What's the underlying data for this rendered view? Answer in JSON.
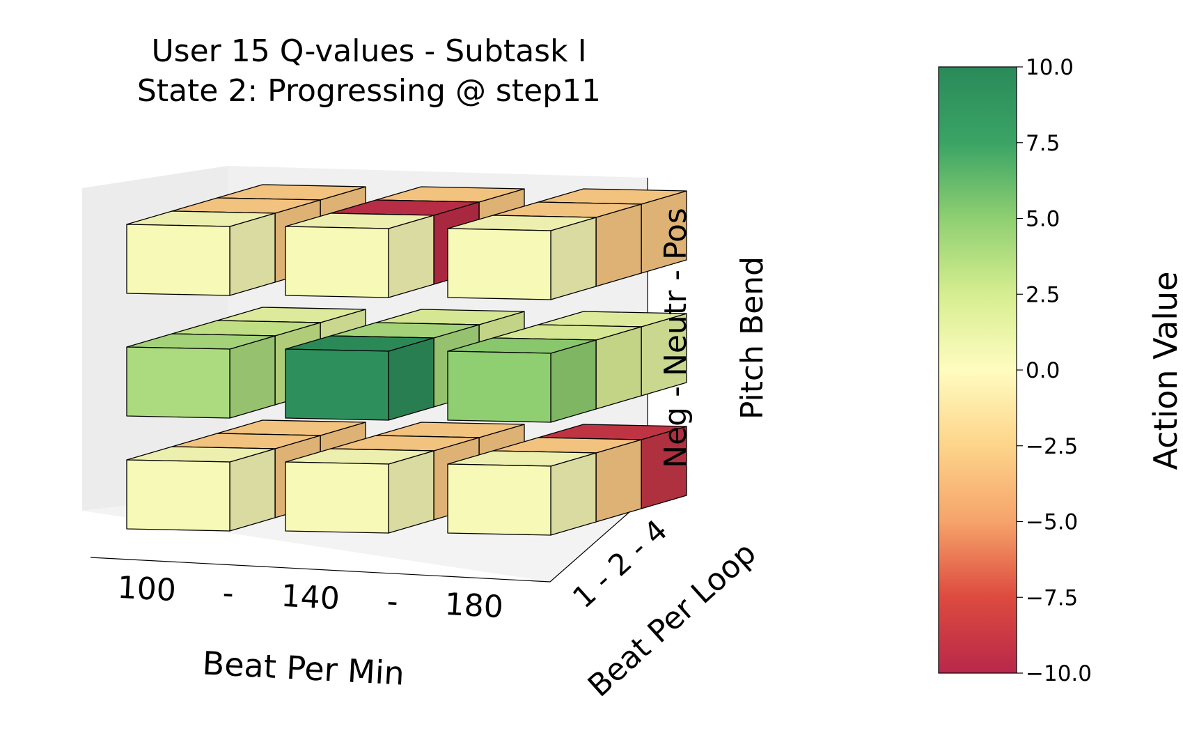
{
  "chart_data": {
    "type": "bar3d",
    "title_line1": "User 15 Q-values  -  Subtask I",
    "title_line2": "State 2: Progressing @ step11",
    "xlabel": "Beat Per Min",
    "ylabel": "Beat Per Loop",
    "zlabel": "Pitch Bend",
    "x_ticks": [
      "100",
      "-",
      "140",
      "-",
      "180"
    ],
    "y_tick_text": "1 - 2 - 4",
    "z_tick_text": "Neg - Neutr - Pos",
    "x_categories": [
      "100",
      "140",
      "180"
    ],
    "y_categories": [
      "1",
      "2",
      "4"
    ],
    "z_categories": [
      "Neg",
      "Neutr",
      "Pos"
    ],
    "values": {
      "Pos": [
        [
          0.5,
          -3,
          -3
        ],
        [
          0.5,
          -9.5,
          -3
        ],
        [
          0.5,
          -3,
          -3
        ]
      ],
      "Neutr": [
        [
          4,
          3,
          1.5
        ],
        [
          9.5,
          4,
          2
        ],
        [
          5,
          2,
          1.5
        ]
      ],
      "Neg": [
        [
          0.5,
          -3,
          -3
        ],
        [
          0.5,
          -3,
          -3
        ],
        [
          0.5,
          -3,
          -9
        ]
      ]
    },
    "colorbar": {
      "label": "Action Value",
      "min": -10,
      "max": 10,
      "ticks": [
        "10.0",
        "7.5",
        "5.0",
        "2.5",
        "0.0",
        "−2.5",
        "−5.0",
        "−7.5",
        "−10.0"
      ],
      "colormap_stops": [
        "#b8284a",
        "#dd4a3f",
        "#f6a36a",
        "#fdd48a",
        "#fffcc0",
        "#d6ee8f",
        "#8fcf72",
        "#3aa465",
        "#2a8a5a"
      ]
    }
  }
}
